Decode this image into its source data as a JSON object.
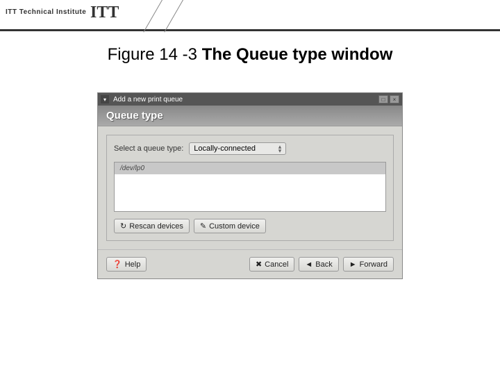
{
  "page_header": {
    "institute_text": "ITT Technical Institute",
    "logo_text": "ITT"
  },
  "caption": {
    "label": "Figure 14 -3 ",
    "title": "The Queue type window"
  },
  "window": {
    "titlebar": {
      "text": "Add a new print queue"
    },
    "header": "Queue type",
    "select_label": "Select a queue type:",
    "dropdown_value": "Locally-connected",
    "device_list": {
      "items": [
        "/dev/lp0"
      ]
    },
    "buttons": {
      "rescan": "Rescan devices",
      "custom": "Custom device"
    },
    "bottom_buttons": {
      "help": "Help",
      "cancel": "Cancel",
      "back": "Back",
      "forward": "Forward"
    }
  },
  "colors": {
    "window_bg": "#d6d6d2",
    "titlebar_bg": "#555555",
    "header_gradient_start": "#888888",
    "header_gradient_end": "#aaaaaa",
    "border": "#999999",
    "list_bg": "#ffffff",
    "list_item_bg": "#c8c8c8"
  }
}
